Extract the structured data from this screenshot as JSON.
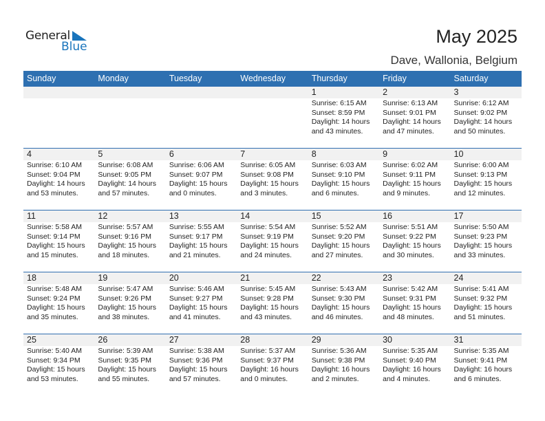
{
  "logo": {
    "text1": "General",
    "text2": "Blue"
  },
  "title": "May 2025",
  "location": "Dave, Wallonia, Belgium",
  "colors": {
    "header": "#2e70b1",
    "logo_blue": "#1a75bc"
  },
  "weekdays": [
    "Sunday",
    "Monday",
    "Tuesday",
    "Wednesday",
    "Thursday",
    "Friday",
    "Saturday"
  ],
  "weeks": [
    [
      null,
      null,
      null,
      null,
      {
        "day": "1",
        "sunrise": "Sunrise: 6:15 AM",
        "sunset": "Sunset: 8:59 PM",
        "daylight1": "Daylight: 14 hours",
        "daylight2": "and 43 minutes."
      },
      {
        "day": "2",
        "sunrise": "Sunrise: 6:13 AM",
        "sunset": "Sunset: 9:01 PM",
        "daylight1": "Daylight: 14 hours",
        "daylight2": "and 47 minutes."
      },
      {
        "day": "3",
        "sunrise": "Sunrise: 6:12 AM",
        "sunset": "Sunset: 9:02 PM",
        "daylight1": "Daylight: 14 hours",
        "daylight2": "and 50 minutes."
      }
    ],
    [
      {
        "day": "4",
        "sunrise": "Sunrise: 6:10 AM",
        "sunset": "Sunset: 9:04 PM",
        "daylight1": "Daylight: 14 hours",
        "daylight2": "and 53 minutes."
      },
      {
        "day": "5",
        "sunrise": "Sunrise: 6:08 AM",
        "sunset": "Sunset: 9:05 PM",
        "daylight1": "Daylight: 14 hours",
        "daylight2": "and 57 minutes."
      },
      {
        "day": "6",
        "sunrise": "Sunrise: 6:06 AM",
        "sunset": "Sunset: 9:07 PM",
        "daylight1": "Daylight: 15 hours",
        "daylight2": "and 0 minutes."
      },
      {
        "day": "7",
        "sunrise": "Sunrise: 6:05 AM",
        "sunset": "Sunset: 9:08 PM",
        "daylight1": "Daylight: 15 hours",
        "daylight2": "and 3 minutes."
      },
      {
        "day": "8",
        "sunrise": "Sunrise: 6:03 AM",
        "sunset": "Sunset: 9:10 PM",
        "daylight1": "Daylight: 15 hours",
        "daylight2": "and 6 minutes."
      },
      {
        "day": "9",
        "sunrise": "Sunrise: 6:02 AM",
        "sunset": "Sunset: 9:11 PM",
        "daylight1": "Daylight: 15 hours",
        "daylight2": "and 9 minutes."
      },
      {
        "day": "10",
        "sunrise": "Sunrise: 6:00 AM",
        "sunset": "Sunset: 9:13 PM",
        "daylight1": "Daylight: 15 hours",
        "daylight2": "and 12 minutes."
      }
    ],
    [
      {
        "day": "11",
        "sunrise": "Sunrise: 5:58 AM",
        "sunset": "Sunset: 9:14 PM",
        "daylight1": "Daylight: 15 hours",
        "daylight2": "and 15 minutes."
      },
      {
        "day": "12",
        "sunrise": "Sunrise: 5:57 AM",
        "sunset": "Sunset: 9:16 PM",
        "daylight1": "Daylight: 15 hours",
        "daylight2": "and 18 minutes."
      },
      {
        "day": "13",
        "sunrise": "Sunrise: 5:55 AM",
        "sunset": "Sunset: 9:17 PM",
        "daylight1": "Daylight: 15 hours",
        "daylight2": "and 21 minutes."
      },
      {
        "day": "14",
        "sunrise": "Sunrise: 5:54 AM",
        "sunset": "Sunset: 9:19 PM",
        "daylight1": "Daylight: 15 hours",
        "daylight2": "and 24 minutes."
      },
      {
        "day": "15",
        "sunrise": "Sunrise: 5:52 AM",
        "sunset": "Sunset: 9:20 PM",
        "daylight1": "Daylight: 15 hours",
        "daylight2": "and 27 minutes."
      },
      {
        "day": "16",
        "sunrise": "Sunrise: 5:51 AM",
        "sunset": "Sunset: 9:22 PM",
        "daylight1": "Daylight: 15 hours",
        "daylight2": "and 30 minutes."
      },
      {
        "day": "17",
        "sunrise": "Sunrise: 5:50 AM",
        "sunset": "Sunset: 9:23 PM",
        "daylight1": "Daylight: 15 hours",
        "daylight2": "and 33 minutes."
      }
    ],
    [
      {
        "day": "18",
        "sunrise": "Sunrise: 5:48 AM",
        "sunset": "Sunset: 9:24 PM",
        "daylight1": "Daylight: 15 hours",
        "daylight2": "and 35 minutes."
      },
      {
        "day": "19",
        "sunrise": "Sunrise: 5:47 AM",
        "sunset": "Sunset: 9:26 PM",
        "daylight1": "Daylight: 15 hours",
        "daylight2": "and 38 minutes."
      },
      {
        "day": "20",
        "sunrise": "Sunrise: 5:46 AM",
        "sunset": "Sunset: 9:27 PM",
        "daylight1": "Daylight: 15 hours",
        "daylight2": "and 41 minutes."
      },
      {
        "day": "21",
        "sunrise": "Sunrise: 5:45 AM",
        "sunset": "Sunset: 9:28 PM",
        "daylight1": "Daylight: 15 hours",
        "daylight2": "and 43 minutes."
      },
      {
        "day": "22",
        "sunrise": "Sunrise: 5:43 AM",
        "sunset": "Sunset: 9:30 PM",
        "daylight1": "Daylight: 15 hours",
        "daylight2": "and 46 minutes."
      },
      {
        "day": "23",
        "sunrise": "Sunrise: 5:42 AM",
        "sunset": "Sunset: 9:31 PM",
        "daylight1": "Daylight: 15 hours",
        "daylight2": "and 48 minutes."
      },
      {
        "day": "24",
        "sunrise": "Sunrise: 5:41 AM",
        "sunset": "Sunset: 9:32 PM",
        "daylight1": "Daylight: 15 hours",
        "daylight2": "and 51 minutes."
      }
    ],
    [
      {
        "day": "25",
        "sunrise": "Sunrise: 5:40 AM",
        "sunset": "Sunset: 9:34 PM",
        "daylight1": "Daylight: 15 hours",
        "daylight2": "and 53 minutes."
      },
      {
        "day": "26",
        "sunrise": "Sunrise: 5:39 AM",
        "sunset": "Sunset: 9:35 PM",
        "daylight1": "Daylight: 15 hours",
        "daylight2": "and 55 minutes."
      },
      {
        "day": "27",
        "sunrise": "Sunrise: 5:38 AM",
        "sunset": "Sunset: 9:36 PM",
        "daylight1": "Daylight: 15 hours",
        "daylight2": "and 57 minutes."
      },
      {
        "day": "28",
        "sunrise": "Sunrise: 5:37 AM",
        "sunset": "Sunset: 9:37 PM",
        "daylight1": "Daylight: 16 hours",
        "daylight2": "and 0 minutes."
      },
      {
        "day": "29",
        "sunrise": "Sunrise: 5:36 AM",
        "sunset": "Sunset: 9:38 PM",
        "daylight1": "Daylight: 16 hours",
        "daylight2": "and 2 minutes."
      },
      {
        "day": "30",
        "sunrise": "Sunrise: 5:35 AM",
        "sunset": "Sunset: 9:40 PM",
        "daylight1": "Daylight: 16 hours",
        "daylight2": "and 4 minutes."
      },
      {
        "day": "31",
        "sunrise": "Sunrise: 5:35 AM",
        "sunset": "Sunset: 9:41 PM",
        "daylight1": "Daylight: 16 hours",
        "daylight2": "and 6 minutes."
      }
    ]
  ]
}
